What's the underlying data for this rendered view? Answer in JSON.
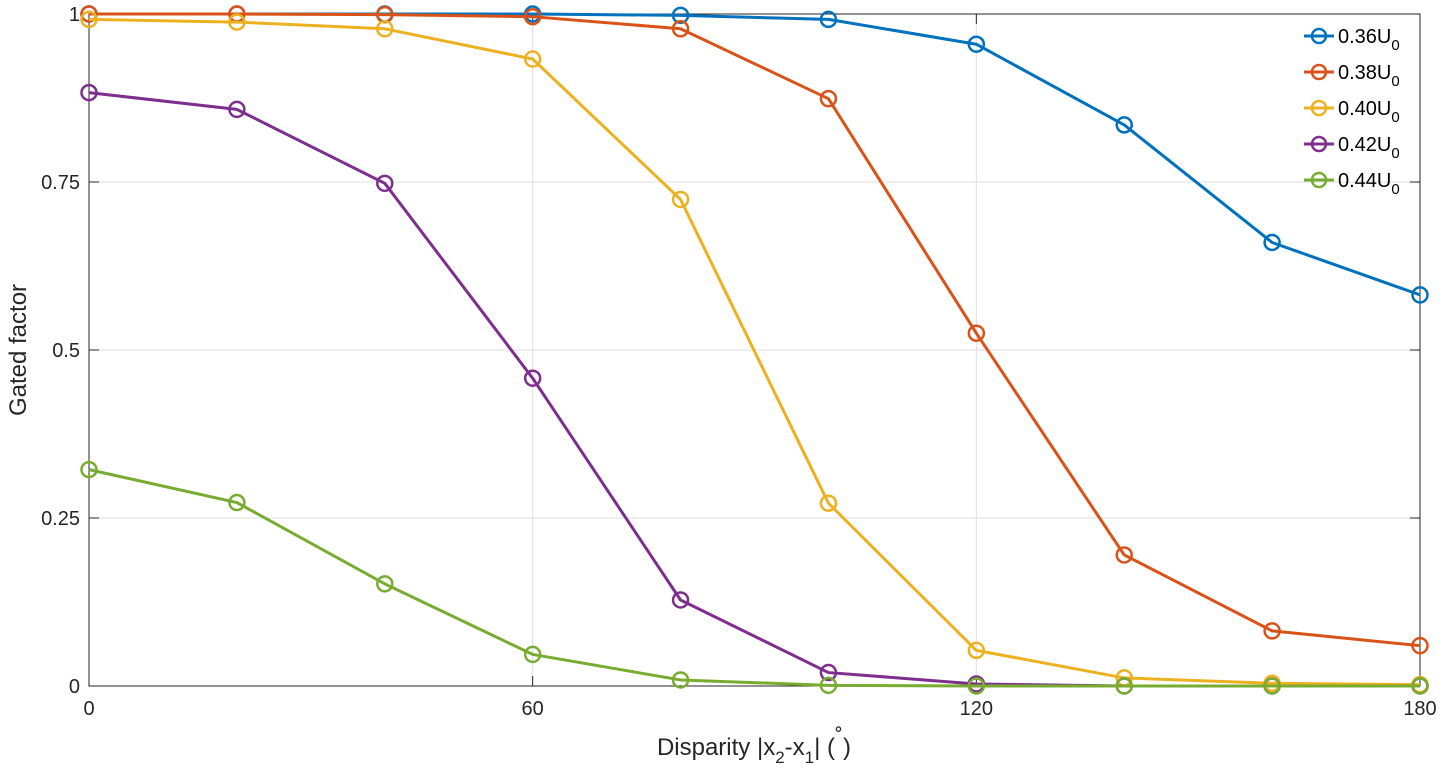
{
  "chart_data": {
    "type": "line",
    "title": "",
    "xlabel": "Disparity |x2-x1| (°)",
    "xlabel_parts": {
      "pre": "Disparity |x",
      "sub1": "2",
      "mid": "-x",
      "sub2": "1",
      "post": "| (",
      "deg": "˚",
      "close": ")"
    },
    "ylabel": "Gated factor",
    "xlim": [
      0,
      180
    ],
    "ylim": [
      0,
      1
    ],
    "xticks": [
      0,
      60,
      120,
      180
    ],
    "yticks": [
      0,
      0.25,
      0.5,
      0.75,
      1
    ],
    "ytick_labels": [
      "0",
      "0.25",
      "0.5",
      "0.75",
      "1"
    ],
    "grid": true,
    "legend_position": "top-right",
    "marker": "circle",
    "x": [
      0,
      20,
      40,
      60,
      80,
      100,
      120,
      140,
      160,
      180
    ],
    "series": [
      {
        "name": "0.36U0",
        "name_main": "0.36U",
        "name_sub": "0",
        "color": "#0072BD",
        "values": [
          1.0,
          1.0,
          1.0,
          1.0,
          0.998,
          0.992,
          0.955,
          0.835,
          0.66,
          0.582
        ]
      },
      {
        "name": "0.38U0",
        "name_main": "0.38U",
        "name_sub": "0",
        "color": "#D95319",
        "values": [
          1.0,
          1.0,
          0.999,
          0.996,
          0.978,
          0.874,
          0.525,
          0.195,
          0.082,
          0.06
        ]
      },
      {
        "name": "0.40U0",
        "name_main": "0.40U",
        "name_sub": "0",
        "color": "#EDB120",
        "values": [
          0.992,
          0.988,
          0.978,
          0.933,
          0.724,
          0.272,
          0.053,
          0.012,
          0.004,
          0.002
        ]
      },
      {
        "name": "0.42U0",
        "name_main": "0.42U",
        "name_sub": "0",
        "color": "#7E2F8E",
        "values": [
          0.883,
          0.858,
          0.748,
          0.458,
          0.128,
          0.02,
          0.003,
          0.0,
          0.0,
          0.0
        ]
      },
      {
        "name": "0.44U0",
        "name_main": "0.44U",
        "name_sub": "0",
        "color": "#77AC30",
        "values": [
          0.322,
          0.273,
          0.152,
          0.047,
          0.009,
          0.001,
          0.0,
          0.0,
          0.0,
          0.0
        ]
      }
    ]
  }
}
